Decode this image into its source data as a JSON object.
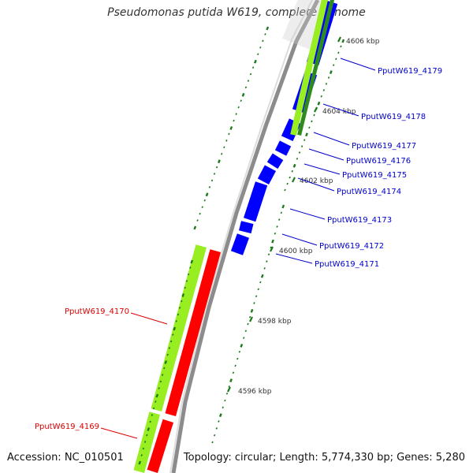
{
  "title": "Pseudomonas putida W619, complete genome",
  "accession": "Accession: NC_010501",
  "summary": "Topology: circular; Length: 5,774,330 bp; Genes: 5,280",
  "colors": {
    "backbone": "#8c8c8c",
    "forward_cds": "#0000ff",
    "reverse_cds": "#ff0000",
    "gene_green": "#99ee22",
    "gene_green_dark": "#2e8b1e",
    "tick": "#1a7a1a",
    "forward_label": "#0000cc",
    "reverse_label": "#dd0000",
    "scale_text": "#333333"
  },
  "scale_labels": [
    "4606 kbp",
    "4604 kbp",
    "4602 kbp",
    "4600 kbp",
    "4598 kbp",
    "4596 kbp"
  ],
  "forward_genes": [
    "PputW619_4179",
    "PputW619_4178",
    "PputW619_4177",
    "PputW619_4176",
    "PputW619_4175",
    "PputW619_4174",
    "PputW619_4173",
    "PputW619_4172",
    "PputW619_4171"
  ],
  "reverse_genes": [
    "PputW619_4170",
    "PputW619_4169"
  ]
}
